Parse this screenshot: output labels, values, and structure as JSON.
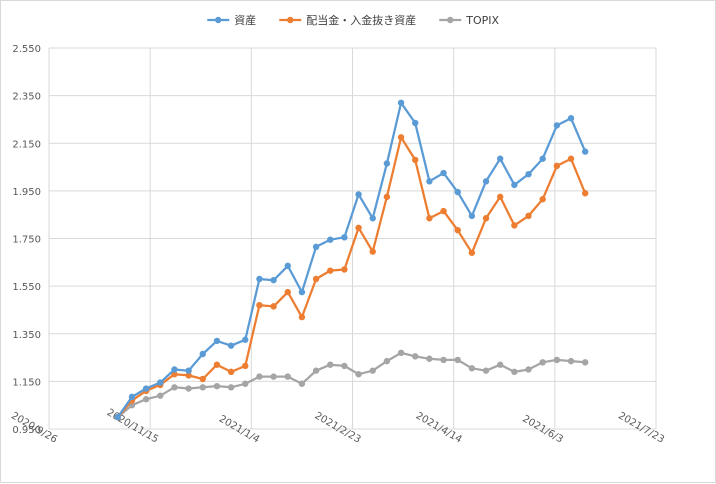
{
  "chart_data": {
    "type": "line",
    "title": "",
    "xlabel": "",
    "ylabel": "",
    "legend_position": "top",
    "grid": true,
    "x_axis": {
      "type": "date",
      "min": "2020-09-26",
      "max": "2021-07-23",
      "tick_labels": [
        "2020/9/26",
        "2020/11/15",
        "2021/1/4",
        "2021/2/23",
        "2021/4/14",
        "2021/6/3",
        "2021/7/23"
      ],
      "tick_dates": [
        "2020-09-26",
        "2020-11-15",
        "2021-01-04",
        "2021-02-23",
        "2021-04-14",
        "2021-06-03",
        "2021-07-23"
      ]
    },
    "y_axis": {
      "min": 0.95,
      "max": 2.55,
      "tick_labels": [
        "0.950",
        "1.150",
        "1.350",
        "1.550",
        "1.750",
        "1.950",
        "2.150",
        "2.350",
        "2.550"
      ],
      "tick_values": [
        0.95,
        1.15,
        1.35,
        1.55,
        1.75,
        1.95,
        2.15,
        2.35,
        2.55
      ]
    },
    "x": [
      "2020-10-30",
      "2020-11-06",
      "2020-11-13",
      "2020-11-20",
      "2020-11-27",
      "2020-12-04",
      "2020-12-11",
      "2020-12-18",
      "2020-12-25",
      "2021-01-01",
      "2021-01-08",
      "2021-01-15",
      "2021-01-22",
      "2021-01-29",
      "2021-02-05",
      "2021-02-12",
      "2021-02-19",
      "2021-02-26",
      "2021-03-05",
      "2021-03-12",
      "2021-03-19",
      "2021-03-26",
      "2021-04-02",
      "2021-04-09",
      "2021-04-16",
      "2021-04-23",
      "2021-04-30",
      "2021-05-07",
      "2021-05-14",
      "2021-05-21",
      "2021-05-28",
      "2021-06-04",
      "2021-06-11",
      "2021-06-18"
    ],
    "series": [
      {
        "name": "資産",
        "color": "#5b9bd5",
        "values": [
          1.0,
          1.085,
          1.12,
          1.145,
          1.2,
          1.195,
          1.265,
          1.32,
          1.3,
          1.325,
          1.58,
          1.575,
          1.635,
          1.525,
          1.715,
          1.745,
          1.755,
          1.935,
          1.835,
          2.065,
          2.32,
          2.235,
          1.99,
          2.025,
          1.945,
          1.845,
          1.99,
          2.085,
          1.975,
          2.02,
          2.085,
          2.225,
          2.255,
          2.115
        ]
      },
      {
        "name": "配当金・入金抜き資産",
        "color": "#ed7d31",
        "values": [
          1.0,
          1.07,
          1.11,
          1.135,
          1.18,
          1.175,
          1.16,
          1.22,
          1.19,
          1.215,
          1.47,
          1.465,
          1.525,
          1.42,
          1.58,
          1.615,
          1.62,
          1.795,
          1.695,
          1.925,
          2.175,
          2.08,
          1.835,
          1.865,
          1.785,
          1.69,
          1.835,
          1.925,
          1.805,
          1.845,
          1.915,
          2.055,
          2.085,
          1.94
        ]
      },
      {
        "name": "TOPIX",
        "color": "#a5a5a5",
        "values": [
          1.0,
          1.05,
          1.075,
          1.09,
          1.125,
          1.12,
          1.125,
          1.13,
          1.125,
          1.14,
          1.17,
          1.17,
          1.17,
          1.14,
          1.195,
          1.22,
          1.215,
          1.18,
          1.195,
          1.235,
          1.27,
          1.255,
          1.245,
          1.24,
          1.24,
          1.205,
          1.195,
          1.22,
          1.19,
          1.2,
          1.23,
          1.24,
          1.235,
          1.23
        ]
      }
    ]
  }
}
